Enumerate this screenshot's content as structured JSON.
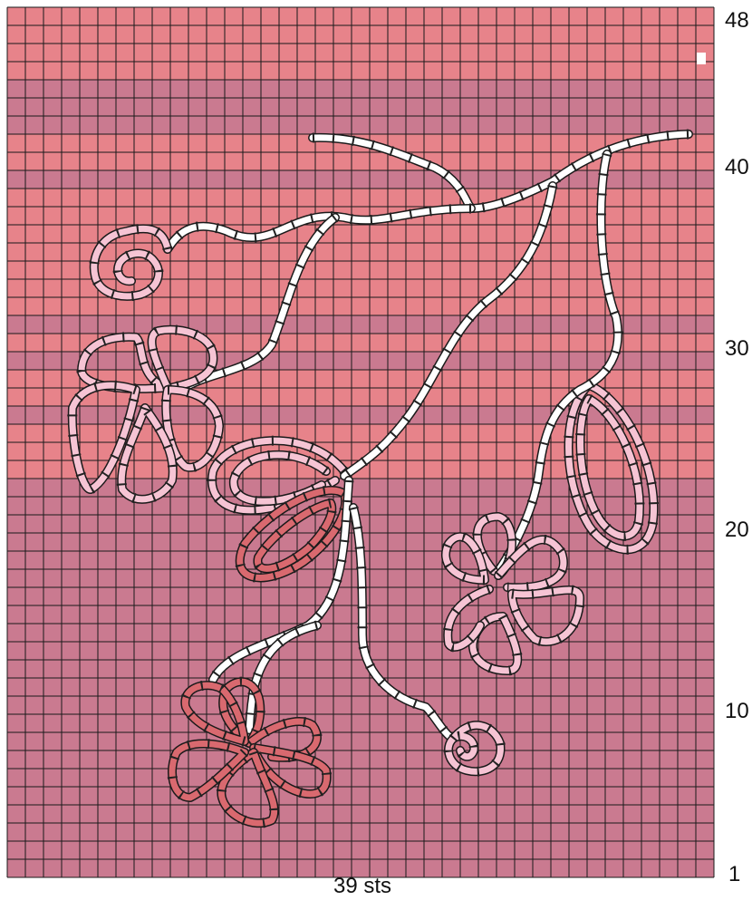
{
  "chart": {
    "stitches": 39,
    "rows": 48,
    "row_labels": [
      "1",
      "10",
      "20",
      "30",
      "40",
      "48"
    ],
    "footer": "39 sts",
    "stripes": [
      {
        "from": 1,
        "to": 22,
        "color": "mauve"
      },
      {
        "from": 23,
        "to": 25,
        "color": "salmon"
      },
      {
        "from": 26,
        "to": 26,
        "color": "mauve"
      },
      {
        "from": 27,
        "to": 28,
        "color": "salmon"
      },
      {
        "from": 29,
        "to": 29,
        "color": "mauve"
      },
      {
        "from": 30,
        "to": 30,
        "color": "salmon"
      },
      {
        "from": 31,
        "to": 31,
        "color": "mauve"
      },
      {
        "from": 32,
        "to": 38,
        "color": "salmon"
      },
      {
        "from": 39,
        "to": 39,
        "color": "mauve"
      },
      {
        "from": 40,
        "to": 41,
        "color": "salmon"
      },
      {
        "from": 42,
        "to": 44,
        "color": "mauve"
      },
      {
        "from": 45,
        "to": 48,
        "color": "salmon"
      }
    ],
    "colors": {
      "salmon": "#E7838A",
      "mauve": "#CA7A90",
      "grid": "#1a1a1a",
      "cord_white": "#ffffff",
      "cord_light_pink": "#F6C4D4",
      "cord_rose": "#D9696F",
      "stitch_mark": "#222222"
    }
  }
}
